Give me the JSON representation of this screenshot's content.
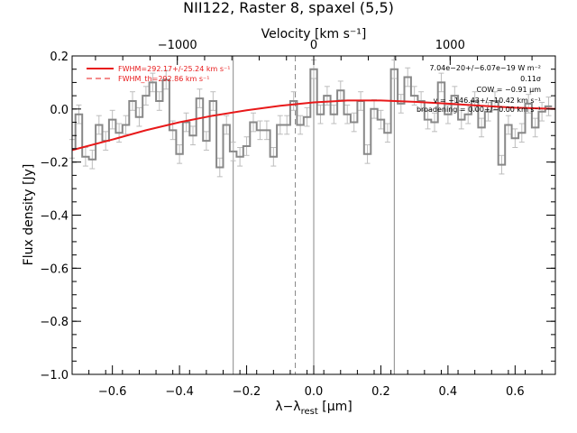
{
  "chart_data": {
    "type": "line",
    "title": "NII122, Raster 8, spaxel (5,5)",
    "xlabel": "λ−λ_rest [μm]",
    "xlabel_main": "λ−λ",
    "xlabel_sub": "rest",
    "xlabel_units": " [μm]",
    "ylabel": "Flux density [Jy]",
    "top_xlabel": "Velocity [km s⁻¹]",
    "xlim": [
      -0.72,
      0.72
    ],
    "ylim": [
      -1.0,
      0.2
    ],
    "xticks": [
      -0.6,
      -0.4,
      -0.2,
      0.0,
      0.2,
      0.4,
      0.6
    ],
    "xticklabels": [
      "−0.6",
      "−0.4",
      "−0.2",
      "0.0",
      "0.2",
      "0.4",
      "0.6"
    ],
    "yticks": [
      0.2,
      0.0,
      -0.2,
      -0.4,
      -0.6,
      -0.8,
      -1.0
    ],
    "yticklabels": [
      "0.2",
      "0.0",
      "−0.2",
      "−0.4",
      "−0.6",
      "−0.8",
      "−1.0"
    ],
    "top_ticks_velocity": [
      -1000,
      0,
      1000
    ],
    "top_ticklabels": [
      "−1000",
      "0",
      "1000"
    ],
    "velocity_per_micron": 2460,
    "vertical_lines_solid": [
      -0.24,
      0.0,
      0.24
    ],
    "vertical_lines_dashed": [
      -0.055
    ],
    "series": [
      {
        "name": "spectrum",
        "x": [
          -0.72,
          -0.7,
          -0.68,
          -0.66,
          -0.64,
          -0.62,
          -0.6,
          -0.58,
          -0.56,
          -0.54,
          -0.52,
          -0.5,
          -0.48,
          -0.46,
          -0.44,
          -0.42,
          -0.4,
          -0.38,
          -0.36,
          -0.34,
          -0.32,
          -0.3,
          -0.28,
          -0.26,
          -0.24,
          -0.22,
          -0.2,
          -0.18,
          -0.16,
          -0.14,
          -0.12,
          -0.1,
          -0.08,
          -0.06,
          -0.04,
          -0.02,
          0.0,
          0.02,
          0.04,
          0.06,
          0.08,
          0.1,
          0.12,
          0.14,
          0.16,
          0.18,
          0.2,
          0.22,
          0.24,
          0.26,
          0.28,
          0.3,
          0.32,
          0.34,
          0.36,
          0.38,
          0.4,
          0.42,
          0.44,
          0.46,
          0.48,
          0.5,
          0.52,
          0.54,
          0.56,
          0.58,
          0.6,
          0.62,
          0.64,
          0.66,
          0.68,
          0.7
        ],
        "y": [
          -0.15,
          -0.02,
          -0.18,
          -0.19,
          -0.06,
          -0.12,
          -0.04,
          -0.09,
          -0.06,
          0.03,
          -0.03,
          0.05,
          0.1,
          0.03,
          0.11,
          -0.08,
          -0.17,
          -0.05,
          -0.1,
          0.04,
          -0.12,
          0.03,
          -0.22,
          -0.06,
          -0.16,
          -0.18,
          -0.14,
          -0.05,
          -0.08,
          -0.08,
          -0.18,
          -0.06,
          -0.06,
          0.03,
          -0.06,
          -0.03,
          0.15,
          -0.02,
          0.05,
          -0.02,
          0.07,
          -0.02,
          -0.05,
          0.03,
          -0.17,
          0.0,
          -0.04,
          -0.09,
          0.15,
          0.02,
          0.12,
          0.05,
          0.03,
          -0.04,
          -0.05,
          0.1,
          -0.02,
          0.05,
          -0.04,
          -0.02,
          0.03,
          -0.07,
          -0.01,
          0.03,
          -0.21,
          -0.06,
          -0.11,
          -0.09,
          0.02,
          -0.07,
          -0.01,
          0.01
        ],
        "err": 0.035
      },
      {
        "name": "FWHM=292.17+/-25.24 km s⁻¹",
        "type": "curve",
        "x": [
          -0.72,
          -0.6,
          -0.5,
          -0.4,
          -0.3,
          -0.2,
          -0.1,
          0.0,
          0.1,
          0.2,
          0.3,
          0.4,
          0.5,
          0.6,
          0.72
        ],
        "y": [
          -0.155,
          -0.115,
          -0.08,
          -0.05,
          -0.025,
          -0.005,
          0.012,
          0.025,
          0.032,
          0.032,
          0.027,
          0.02,
          0.012,
          0.005,
          0.0
        ]
      }
    ],
    "legend": [
      {
        "label": "FWHM=292.17+/-25.24 km s⁻¹",
        "style": "solid",
        "color": "#e8191a"
      },
      {
        "label": "FWHM_th=292.86 km s⁻¹",
        "style": "dashed",
        "color": "#e8191a"
      }
    ],
    "annotations": [
      "7.04e−20+/−6.07e−19 W m⁻²",
      "0.11σ",
      "COW = −0.91 μm",
      "v = −146.43+/−10.42 km s⁻¹",
      "broadening = 0.00+/−0.00 km s⁻¹"
    ],
    "colors": {
      "data": "#888888",
      "error": "#bdbdbd",
      "fit": "#e8191a"
    }
  }
}
